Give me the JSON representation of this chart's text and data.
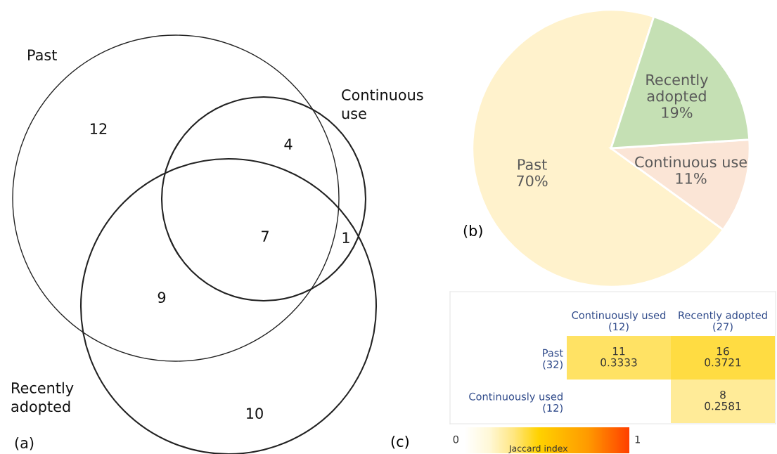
{
  "chart_data": [
    {
      "type": "other",
      "annotations": [
        "Past",
        "Continuous\nuse",
        "Recently\nadopted",
        "12",
        "4",
        "7",
        "1",
        "9",
        "10",
        "(a)"
      ]
    },
    {
      "type": "pie",
      "categories": [
        "Past",
        "Continuous use",
        "Recently adopted"
      ],
      "values": [
        70,
        11,
        19
      ],
      "colors": [
        "#fff2cc",
        "#fbe5d6",
        "#c5e0b4"
      ],
      "value_labels": [
        "70%",
        "11%",
        "19%"
      ],
      "annotations": [
        "(b)"
      ]
    },
    {
      "type": "heatmap",
      "categories": [
        "Continuously used\n(12)",
        "Recently adopted\n(27)"
      ],
      "y_categories": [
        "Past\n(32)",
        "Continuously used\n(12)"
      ],
      "cells": [
        [
          0.3333,
          0.3721
        ],
        [
          null,
          0.2581
        ]
      ],
      "cell_labels": [
        [
          "11\n0.3333",
          "16\n0.3721"
        ],
        [
          null,
          "8\n0.2581"
        ]
      ],
      "clim": [
        0,
        1
      ],
      "cticks": [
        0,
        1
      ],
      "clabel": "Jaccard index",
      "annotations": [
        "(c)"
      ]
    }
  ]
}
